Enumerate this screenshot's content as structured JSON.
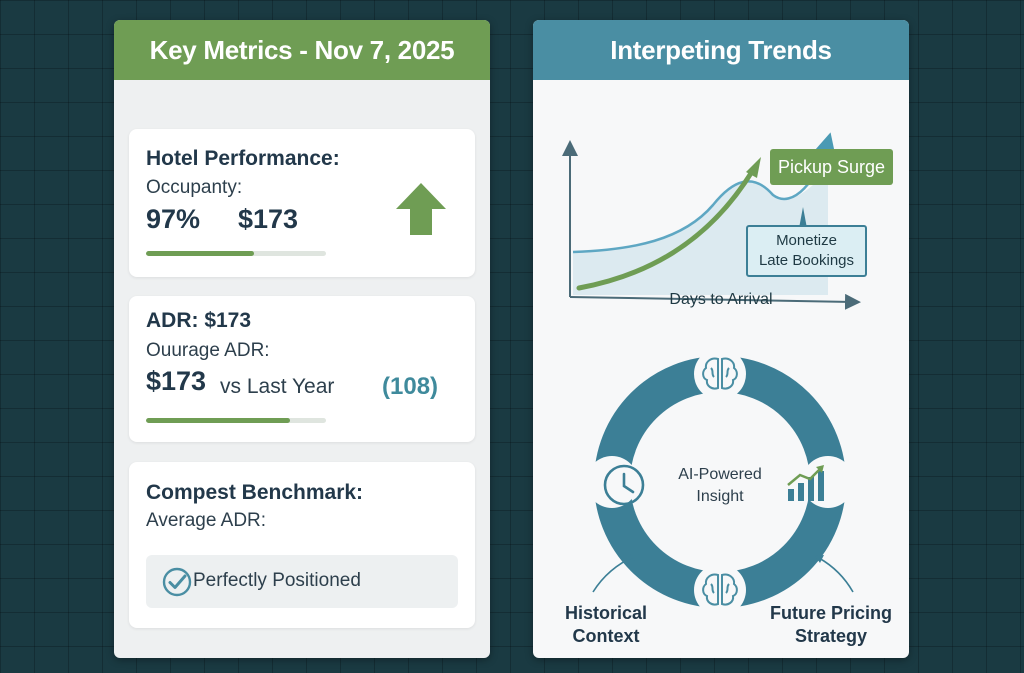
{
  "left_panel": {
    "header": "Key Metrics - Nov 7, 2025",
    "hotel_card": {
      "title": "Hotel Performance:",
      "subtitle": "Occupanty:",
      "occupancy": "97%",
      "revenue": "$173",
      "trend_icon": "arrow-up-icon",
      "progress": 0.6
    },
    "adr_card": {
      "title": "ADR: $173",
      "subtitle": "Ouurage ADR:",
      "value": "$173",
      "comparison": "vs Last Year",
      "delta": "(108)",
      "progress": 0.8
    },
    "benchmark_card": {
      "title": "Compest Benchmark:",
      "subtitle": "Average ADR:",
      "status_icon": "check-circle-icon",
      "status": "Perfectly Positioned"
    }
  },
  "right_panel": {
    "header": "Interpeting Trends",
    "trend_chart": {
      "x_axis_label": "Days to Arrival",
      "callout_primary": "Pickup Surge",
      "callout_secondary_line1": "Monetize",
      "callout_secondary_line2": "Late Bookings"
    },
    "cycle": {
      "center_line1": "AI-Powered",
      "center_line2": "Insight",
      "icons": [
        "brain-icon",
        "bar-chart-icon",
        "brain-icon",
        "clock-icon"
      ],
      "left_label_line1": "Historical",
      "left_label_line2": "Context",
      "right_label_line1": "Future Pricing",
      "right_label_line2": "Strategy"
    }
  },
  "colors": {
    "background": "#1a3a42",
    "green_accent": "#6f9d54",
    "teal_accent": "#4a8ea3",
    "teal_dark": "#3c7f96"
  }
}
